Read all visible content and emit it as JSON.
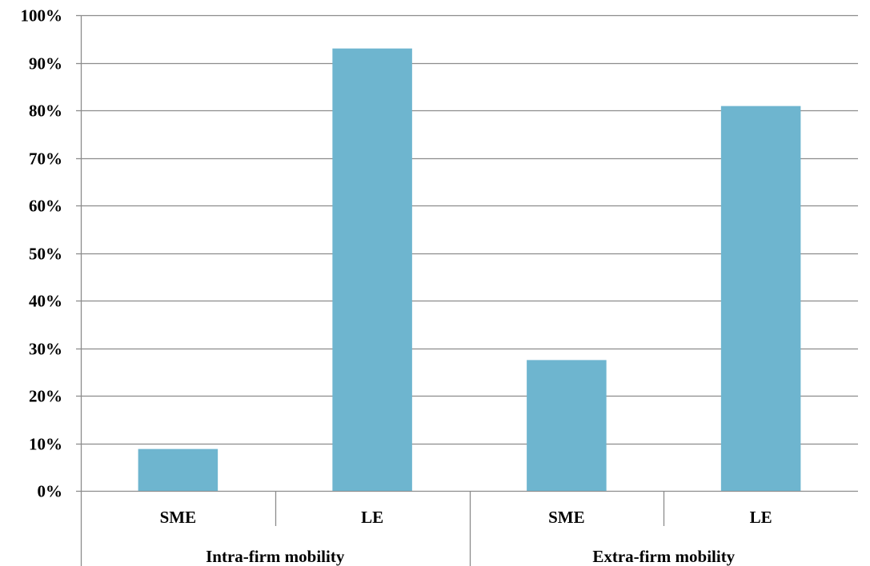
{
  "chart_data": {
    "type": "bar",
    "title": "",
    "xlabel": "",
    "ylabel": "",
    "groups": [
      {
        "label": "Intra-firm mobility",
        "categories": [
          "SME",
          "LE"
        ],
        "values": [
          8.8,
          93.0
        ]
      },
      {
        "label": "Extra-firm mobility",
        "categories": [
          "SME",
          "LE"
        ],
        "values": [
          27.5,
          80.9
        ]
      }
    ],
    "categories": [
      "SME",
      "LE",
      "SME",
      "LE"
    ],
    "values": [
      8.8,
      93.0,
      27.5,
      80.9
    ],
    "ylim": [
      0,
      100
    ],
    "yticks": [
      0,
      10,
      20,
      30,
      40,
      50,
      60,
      70,
      80,
      90,
      100
    ],
    "ytick_labels": [
      "0%",
      "10%",
      "20%",
      "30%",
      "40%",
      "50%",
      "60%",
      "70%",
      "80%",
      "90%",
      "100%"
    ],
    "grid": true,
    "legend": "none",
    "colors": {
      "bar": "#6eb5cf",
      "grid": "#8c8c8c",
      "axis": "#8c8c8c",
      "text": "#000000"
    }
  }
}
